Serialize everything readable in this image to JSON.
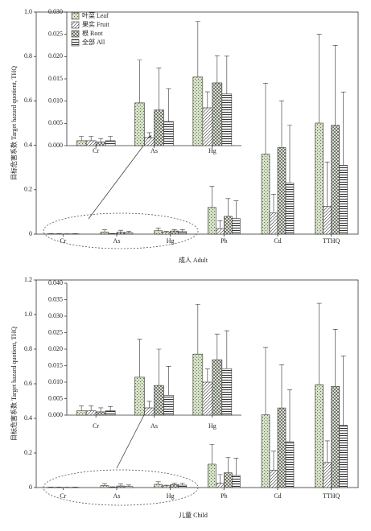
{
  "chart_data": [
    {
      "type": "bar",
      "ylabel": "目标危害系数 Target hazard quotient, THQ",
      "xlabel": "成人 Adult",
      "categories": [
        "Cr",
        "As",
        "Hg",
        "Pb",
        "Cd",
        "TTHQ"
      ],
      "ylim": [
        0,
        1.0
      ],
      "yticks": [
        0,
        0.2,
        0.4,
        0.6,
        0.8,
        {
          "value": 1.0,
          "label": "1.0"
        }
      ],
      "series": [
        {
          "color": "#d9e6c8",
          "hatch": "dots",
          "values": [
            0.0011,
            0.0096,
            0.0154,
            0.12,
            0.36,
            0.5
          ],
          "errors": [
            0.001,
            0.0096,
            0.0125,
            0.095,
            0.32,
            0.4
          ]
        },
        {
          "color": "#ffffff",
          "hatch": "diagonal",
          "values": [
            0.0011,
            0.0018,
            0.0085,
            0.025,
            0.095,
            0.125
          ],
          "errors": [
            0.001,
            0.0011,
            0.0036,
            0.035,
            0.085,
            0.2
          ]
        },
        {
          "color": "#e6eedd",
          "hatch": "cross",
          "values": [
            0.0008,
            0.008,
            0.0141,
            0.08,
            0.39,
            0.49
          ],
          "errors": [
            0.0008,
            0.0094,
            0.0061,
            0.08,
            0.21,
            0.36
          ]
        },
        {
          "color": "#ffffff",
          "hatch": "horizontal",
          "values": [
            0.0011,
            0.0054,
            0.0116,
            0.07,
            0.23,
            0.31
          ],
          "errors": [
            0.001,
            0.0074,
            0.0085,
            0.08,
            0.26,
            0.33
          ]
        }
      ]
    },
    {
      "type": "bar",
      "categories": [
        "Cr",
        "As",
        "Hg"
      ],
      "legend": "upper left",
      "ylim": [
        0,
        0.03
      ],
      "yticks": [
        {
          "value": 0,
          "label": "0.000"
        },
        {
          "value": 0.005,
          "label": "0.005"
        },
        {
          "value": 0.01,
          "label": "0.010"
        },
        {
          "value": 0.015,
          "label": "0.015"
        },
        {
          "value": 0.02,
          "label": "0.020"
        },
        {
          "value": 0.025,
          "label": "0.025"
        },
        {
          "value": 0.03,
          "label": "0.030"
        }
      ],
      "series": [
        {
          "name": "叶菜 Leaf",
          "color": "#d9e6c8",
          "hatch": "dots",
          "values": [
            0.0011,
            0.0096,
            0.0154
          ],
          "errors": [
            0.001,
            0.0096,
            0.0125
          ]
        },
        {
          "name": "果实 Fruit",
          "color": "#ffffff",
          "hatch": "diagonal",
          "values": [
            0.0011,
            0.0018,
            0.0085
          ],
          "errors": [
            0.001,
            0.0011,
            0.0036
          ]
        },
        {
          "name": "根 Root",
          "color": "#e6eedd",
          "hatch": "cross",
          "values": [
            0.0008,
            0.008,
            0.0141
          ],
          "errors": [
            0.0008,
            0.0094,
            0.0061
          ]
        },
        {
          "name": "全部 All",
          "color": "#ffffff",
          "hatch": "horizontal",
          "values": [
            0.0011,
            0.0054,
            0.0116
          ],
          "errors": [
            0.001,
            0.0074,
            0.0085
          ]
        }
      ]
    },
    {
      "type": "bar",
      "ylabel": "目标危害系数 Target hazard quotient, THQ",
      "xlabel": "儿童 Child",
      "categories": [
        "Cr",
        "As",
        "Hg",
        "Pb",
        "Cd",
        "TTHQ"
      ],
      "ylim": [
        0,
        1.2
      ],
      "yticks": [
        0,
        0.2,
        0.4,
        0.6,
        0.8,
        {
          "value": 1.0,
          "label": "1.0"
        },
        1.2
      ],
      "series": [
        {
          "color": "#d9e6c8",
          "hatch": "dots",
          "values": [
            0.0013,
            0.0115,
            0.0185,
            0.135,
            0.42,
            0.595
          ],
          "errors": [
            0.0015,
            0.0115,
            0.0151,
            0.115,
            0.39,
            0.47
          ]
        },
        {
          "color": "#ffffff",
          "hatch": "diagonal",
          "values": [
            0.0013,
            0.0022,
            0.01,
            0.025,
            0.1,
            0.145
          ],
          "errors": [
            0.0015,
            0.002,
            0.004,
            0.05,
            0.11,
            0.125
          ]
        },
        {
          "color": "#e6eedd",
          "hatch": "cross",
          "values": [
            0.001,
            0.009,
            0.0168,
            0.085,
            0.46,
            0.585
          ],
          "errors": [
            0.0012,
            0.011,
            0.0078,
            0.09,
            0.25,
            0.33
          ]
        },
        {
          "color": "#ffffff",
          "hatch": "horizontal",
          "values": [
            0.0013,
            0.006,
            0.0141,
            0.07,
            0.265,
            0.36
          ],
          "errors": [
            0.0013,
            0.0088,
            0.0115,
            0.1,
            0.3,
            0.4
          ]
        }
      ]
    },
    {
      "type": "bar",
      "categories": [
        "Cr",
        "As",
        "Hg"
      ],
      "ylim": [
        0,
        0.04
      ],
      "yticks": [
        {
          "value": 0,
          "label": "0.000"
        },
        {
          "value": 0.005,
          "label": "0.005"
        },
        {
          "value": 0.01,
          "label": "0.010"
        },
        {
          "value": 0.015,
          "label": "0.015"
        },
        {
          "value": 0.02,
          "label": "0.020"
        },
        {
          "value": 0.025,
          "label": "0.025"
        },
        {
          "value": 0.03,
          "label": "0.030"
        },
        {
          "value": 0.035,
          "label": "0.035"
        },
        {
          "value": 0.04,
          "label": "0.040"
        }
      ],
      "series": [
        {
          "color": "#d9e6c8",
          "hatch": "dots",
          "values": [
            0.0013,
            0.0115,
            0.0185
          ],
          "errors": [
            0.0015,
            0.0115,
            0.0151
          ]
        },
        {
          "color": "#ffffff",
          "hatch": "diagonal",
          "values": [
            0.0013,
            0.0022,
            0.01
          ],
          "errors": [
            0.0015,
            0.002,
            0.004
          ]
        },
        {
          "color": "#e6eedd",
          "hatch": "cross",
          "values": [
            0.001,
            0.009,
            0.0168
          ],
          "errors": [
            0.0012,
            0.011,
            0.0078
          ]
        },
        {
          "color": "#ffffff",
          "hatch": "horizontal",
          "values": [
            0.0013,
            0.006,
            0.0141
          ],
          "errors": [
            0.0013,
            0.0088,
            0.0115
          ]
        }
      ]
    }
  ]
}
